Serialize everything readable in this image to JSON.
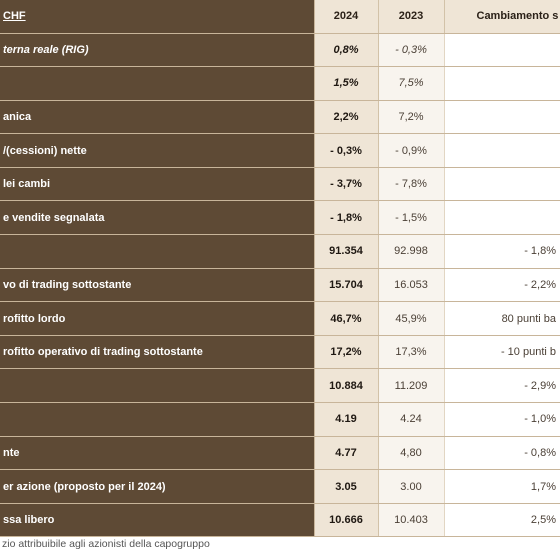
{
  "header": {
    "label": "CHF",
    "year_2024": "2024",
    "year_2023": "2023",
    "change": "Cambiamento s"
  },
  "rows": [
    {
      "label": "terna reale (RIG)",
      "v2024": "0,8%",
      "v2023": "- 0,3%",
      "change": ""
    },
    {
      "label": "",
      "v2024": "1,5%",
      "v2023": "7,5%",
      "change": ""
    },
    {
      "label": "anica",
      "v2024": "2,2%",
      "v2023": "7,2%",
      "change": ""
    },
    {
      "label": "/(cessioni) nette",
      "v2024": "- 0,3%",
      "v2023": "- 0,9%",
      "change": ""
    },
    {
      "label": "lei cambi",
      "v2024": "- 3,7%",
      "v2023": "- 7,8%",
      "change": ""
    },
    {
      "label": "e vendite segnalata",
      "v2024": "- 1,8%",
      "v2023": "- 1,5%",
      "change": ""
    },
    {
      "label": "",
      "v2024": "91.354",
      "v2023": "92.998",
      "change": "- 1,8%"
    },
    {
      "label": "vo di trading sottostante",
      "v2024": "15.704",
      "v2023": "16.053",
      "change": "- 2,2%"
    },
    {
      "label": "rofitto lordo",
      "v2024": "46,7%",
      "v2023": "45,9%",
      "change": "80 punti ba"
    },
    {
      "label": "rofitto operativo di trading sottostante",
      "v2024": "17,2%",
      "v2023": "17,3%",
      "change": "- 10 punti b"
    },
    {
      "label": "",
      "v2024": "10.884",
      "v2023": "11.209",
      "change": "- 2,9%"
    },
    {
      "label": "",
      "v2024": "4.19",
      "v2023": "4.24",
      "change": "- 1,0%"
    },
    {
      "label": "nte",
      "v2024": "4.77",
      "v2023": "4,80",
      "change": "- 0,8%"
    },
    {
      "label": "er azione (proposto per il 2024)",
      "v2024": "3.05",
      "v2023": "3.00",
      "change": "1,7%"
    },
    {
      "label": "ssa libero",
      "v2024": "10.666",
      "v2023": "10.403",
      "change": "2,5%"
    }
  ],
  "footnote": "zio attribuibile agli azionisti della capogruppo"
}
